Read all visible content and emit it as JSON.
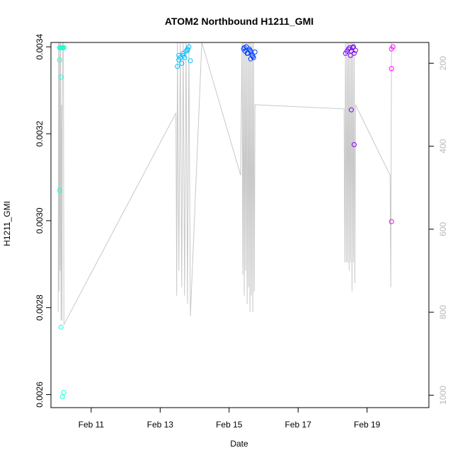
{
  "chart_data": {
    "type": "scatter",
    "title": "ATOM2 Northbound H1211_GMI",
    "xlabel": "Date",
    "ylabel": "H1211_GMI",
    "x_ticks": [
      "Feb 11",
      "Feb 13",
      "Feb 15",
      "Feb 17",
      "Feb 19"
    ],
    "y_ticks": [
      "0.0026",
      "0.0028",
      "0.0030",
      "0.0032",
      "0.0034"
    ],
    "y2_ticks": [
      "200",
      "400",
      "600",
      "800",
      "1000"
    ],
    "xlim": [
      "2004-02-09T20:00",
      "2004-02-20T19:00"
    ],
    "ylim": [
      0.00257,
      0.00341
    ],
    "y2lim": [
      1030,
      150
    ],
    "y2_reversed": true,
    "grid": false,
    "series": [
      {
        "role": "points",
        "colors": [
          "#1affd5",
          "#00bfff",
          "#0040ff",
          "#8000ff",
          "#ff00ff"
        ],
        "x": [
          "2004-02-10T02:00",
          "2004-02-10T02:30",
          "2004-02-10T03:00",
          "2004-02-10T03:30",
          "2004-02-10T04:00",
          "2004-02-10T04:30",
          "2004-02-10T05:00",
          "2004-02-10T02:00",
          "2004-02-10T03:00",
          "2004-02-10T02:00",
          "2004-02-10T03:00",
          "2004-02-10T04:00",
          "2004-02-10T05:00",
          "2004-02-13T12:00",
          "2004-02-13T13:00",
          "2004-02-13T14:00",
          "2004-02-13T15:00",
          "2004-02-13T16:00",
          "2004-02-13T17:00",
          "2004-02-13T18:00",
          "2004-02-13T19:00",
          "2004-02-13T20:00",
          "2004-02-13T21:00",
          "2004-02-13T13:00",
          "2004-02-13T16:00",
          "2004-02-13T19:00",
          "2004-02-15T10:00",
          "2004-02-15T11:00",
          "2004-02-15T12:00",
          "2004-02-15T13:00",
          "2004-02-15T14:00",
          "2004-02-15T15:00",
          "2004-02-15T16:00",
          "2004-02-15T17:00",
          "2004-02-15T18:00",
          "2004-02-15T10:30",
          "2004-02-15T12:30",
          "2004-02-15T14:30",
          "2004-02-15T16:30",
          "2004-02-15T15:00",
          "2004-02-18T09:00",
          "2004-02-18T10:00",
          "2004-02-18T11:00",
          "2004-02-18T12:00",
          "2004-02-18T13:00",
          "2004-02-18T14:00",
          "2004-02-18T15:00",
          "2004-02-18T16:00",
          "2004-02-18T12:30",
          "2004-02-18T14:30",
          "2004-02-18T13:00",
          "2004-02-18T15:00",
          "2004-02-19T17:00",
          "2004-02-19T18:00",
          "2004-02-19T17:00",
          "2004-02-19T17:00"
        ],
        "y": [
          0.003398,
          0.003398,
          0.003398,
          0.003398,
          0.003398,
          0.003398,
          0.003398,
          0.00337,
          0.00333,
          0.00307,
          0.002755,
          0.002595,
          0.002605,
          0.003355,
          0.00337,
          0.003375,
          0.003362,
          0.00338,
          0.003375,
          0.00339,
          0.003392,
          0.0034,
          0.003368,
          0.00338,
          0.003385,
          0.003395,
          0.003395,
          0.00339,
          0.0034,
          0.003385,
          0.003395,
          0.00339,
          0.00338,
          0.003375,
          0.003388,
          0.003398,
          0.003385,
          0.003392,
          0.003378,
          0.003372,
          0.003385,
          0.00339,
          0.003395,
          0.003398,
          0.00339,
          0.003398,
          0.003385,
          0.003392,
          0.00338,
          0.0034,
          0.003255,
          0.003175,
          0.003395,
          0.0034,
          0.00335,
          0.002998
        ],
        "color_index": [
          0,
          0,
          0,
          0,
          0,
          0,
          0,
          0,
          0,
          0,
          0,
          0,
          0,
          1,
          1,
          1,
          1,
          1,
          1,
          1,
          1,
          1,
          1,
          1,
          1,
          1,
          2,
          2,
          2,
          2,
          2,
          2,
          2,
          2,
          2,
          2,
          2,
          2,
          2,
          2,
          3,
          3,
          3,
          3,
          3,
          3,
          3,
          3,
          3,
          3,
          3,
          3,
          4,
          4,
          4,
          4
        ]
      },
      {
        "role": "pressure-line",
        "axis": "right",
        "color": "#c8c8c8",
        "x": [
          "2004-02-10T01:00",
          "2004-02-10T01:20",
          "2004-02-10T01:40",
          "2004-02-10T02:00",
          "2004-02-10T02:20",
          "2004-02-10T02:40",
          "2004-02-10T03:00",
          "2004-02-10T03:20",
          "2004-02-10T03:40",
          "2004-02-10T04:00",
          "2004-02-10T04:20",
          "2004-02-10T04:40",
          "2004-02-10T05:00",
          "2004-02-13T11:00",
          "2004-02-13T11:30",
          "2004-02-13T12:00",
          "2004-02-13T13:00",
          "2004-02-13T14:00",
          "2004-02-13T15:00",
          "2004-02-13T16:00",
          "2004-02-13T17:00",
          "2004-02-13T18:00",
          "2004-02-13T19:00",
          "2004-02-13T20:00",
          "2004-02-13T21:00",
          "2004-02-14T05:00",
          "2004-02-15T08:00",
          "2004-02-15T09:00",
          "2004-02-15T09:30",
          "2004-02-15T10:00",
          "2004-02-15T10:30",
          "2004-02-15T11:00",
          "2004-02-15T11:30",
          "2004-02-15T12:00",
          "2004-02-15T12:30",
          "2004-02-15T13:00",
          "2004-02-15T13:30",
          "2004-02-15T14:00",
          "2004-02-15T14:30",
          "2004-02-15T15:00",
          "2004-02-15T15:30",
          "2004-02-15T16:00",
          "2004-02-15T16:30",
          "2004-02-15T17:00",
          "2004-02-15T17:30",
          "2004-02-15T18:00",
          "2004-02-18T08:00",
          "2004-02-18T08:30",
          "2004-02-18T09:00",
          "2004-02-18T09:30",
          "2004-02-18T10:00",
          "2004-02-18T10:30",
          "2004-02-18T11:00",
          "2004-02-18T11:30",
          "2004-02-18T12:00",
          "2004-02-18T12:30",
          "2004-02-18T13:00",
          "2004-02-18T13:30",
          "2004-02-18T14:00",
          "2004-02-18T14:30",
          "2004-02-18T15:00",
          "2004-02-18T15:30",
          "2004-02-18T16:00",
          "2004-02-19T16:00",
          "2004-02-19T16:30",
          "2004-02-19T17:00",
          "2004-02-19T17:30"
        ],
        "y": [
          800,
          150,
          750,
          150,
          700,
          150,
          820,
          300,
          820,
          150,
          150,
          150,
          830,
          320,
          760,
          150,
          700,
          150,
          740,
          150,
          760,
          150,
          780,
          150,
          810,
          150,
          470,
          150,
          710,
          150,
          760,
          150,
          700,
          150,
          780,
          150,
          740,
          150,
          800,
          150,
          760,
          150,
          800,
          150,
          750,
          300,
          310,
          680,
          150,
          680,
          150,
          680,
          150,
          700,
          150,
          680,
          150,
          750,
          150,
          680,
          150,
          730,
          300,
          470,
          740,
          150,
          150
        ]
      }
    ]
  }
}
